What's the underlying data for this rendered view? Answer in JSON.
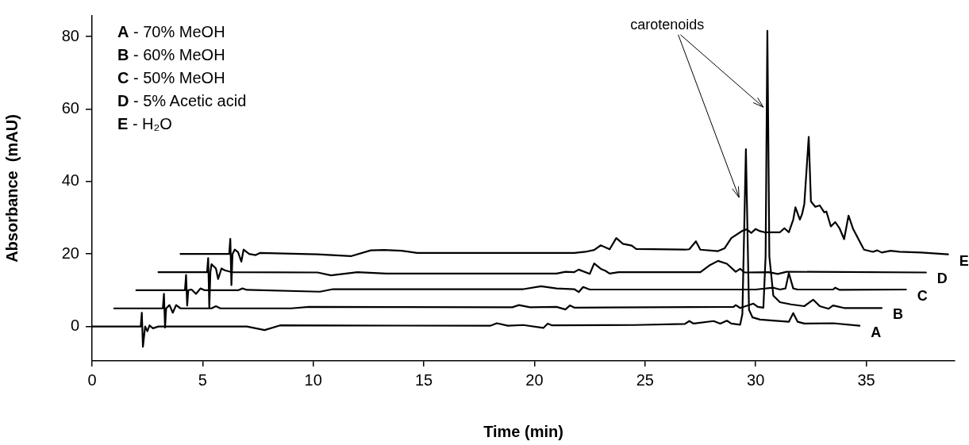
{
  "chart_data": {
    "type": "line",
    "xlabel": "Time (min)",
    "ylabel": "Absorbance  (mAU)",
    "xlim": [
      0,
      39
    ],
    "xticks": [
      0,
      5,
      10,
      15,
      20,
      25,
      30,
      35
    ],
    "ylim": [
      -9.5,
      85.7
    ],
    "yticks": [
      0,
      20,
      40,
      60,
      80
    ],
    "grid": false,
    "legend": false,
    "marker": "none",
    "line_style": "solid",
    "annotations": [
      "A - 70% MeOH",
      "B - 60% MeOH",
      "C - 50% MeOH",
      "D - 5% Acetic acid",
      "E - H₂O",
      {
        "text": "carotenoids",
        "x": 30.35,
        "y": 60.5
      }
    ],
    "series": [
      {
        "name": "A",
        "color": "#000000",
        "x": [
          0,
          2.2,
          2.25,
          2.3,
          2.4,
          2.5,
          2.6,
          2.75,
          3.0,
          7.0,
          7.8,
          8.5,
          18.0,
          18.3,
          18.8,
          19.5,
          20.4,
          20.6,
          20.8,
          24.5,
          26.8,
          27.0,
          27.2,
          28.1,
          28.4,
          28.7,
          28.9,
          29.3,
          29.4,
          29.56,
          29.7,
          29.86,
          30.2,
          30.9,
          31.5,
          31.7,
          31.9,
          32.2,
          33.5,
          34.7
        ],
        "values": [
          0,
          0,
          3.8,
          -5.6,
          0,
          -1.3,
          0.3,
          -0.5,
          0,
          0,
          -1,
          0.3,
          0.2,
          0.9,
          0.2,
          0.4,
          -0.4,
          0.8,
          0.3,
          0.4,
          0.7,
          1.5,
          0.8,
          1.5,
          0.8,
          1.6,
          0.8,
          0.5,
          3.4,
          48.9,
          4.6,
          2.5,
          1.9,
          1.6,
          1.3,
          3.7,
          1.3,
          0.8,
          0.9,
          0.2
        ]
      },
      {
        "name": "B",
        "color": "#000000",
        "x": [
          1.0,
          3.2,
          3.25,
          3.3,
          3.35,
          3.5,
          3.65,
          3.8,
          4.0,
          5.4,
          5.6,
          5.8,
          9.0,
          9.8,
          19.0,
          19.3,
          19.8,
          21.0,
          21.4,
          21.6,
          21.8,
          29.0,
          29.1,
          29.3,
          29.9,
          30.1,
          30.35,
          30.45,
          30.53,
          30.62,
          30.8,
          31.1,
          31.6,
          32.2,
          32.6,
          32.9,
          33.3,
          33.5,
          34.0,
          35.7
        ],
        "values": [
          5,
          5,
          9.0,
          -0.3,
          5,
          5.9,
          3.8,
          5.9,
          5,
          5,
          5.6,
          5,
          5,
          5.4,
          5.3,
          5.9,
          5.3,
          5.4,
          4.7,
          5.8,
          5.2,
          5.4,
          5.9,
          5.1,
          6.3,
          5.4,
          5.2,
          19.3,
          81.6,
          19.3,
          8.5,
          6.7,
          6.1,
          5.6,
          7.4,
          5.6,
          4.9,
          5.8,
          5.1,
          5.1
        ]
      },
      {
        "name": "C",
        "color": "#000000",
        "x": [
          2.0,
          4.2,
          4.25,
          4.3,
          4.35,
          4.5,
          4.7,
          4.9,
          5.1,
          6.6,
          6.8,
          7.0,
          10.3,
          10.9,
          19.5,
          20.3,
          21.0,
          21.8,
          22.0,
          22.2,
          22.5,
          30.0,
          30.8,
          31.1,
          31.35,
          31.5,
          31.7,
          31.9,
          33.5,
          33.6,
          33.8,
          36.8
        ],
        "values": [
          10,
          10,
          14.2,
          5.8,
          10,
          10.2,
          9.0,
          10.5,
          10,
          10,
          10.5,
          10.1,
          9.6,
          10.3,
          10.3,
          11.1,
          10.5,
          10.3,
          9.5,
          10.9,
          10.2,
          10.2,
          10.7,
          10.2,
          10.5,
          14.7,
          10.5,
          10.2,
          10.2,
          10.7,
          10.1,
          10.2
        ]
      },
      {
        "name": "D",
        "color": "#000000",
        "x": [
          3.0,
          5.2,
          5.25,
          5.3,
          5.35,
          5.4,
          5.6,
          5.7,
          5.85,
          6.0,
          6.3,
          10.2,
          10.8,
          12.0,
          13.3,
          21.0,
          21.4,
          21.8,
          22.0,
          22.5,
          22.7,
          23.0,
          23.2,
          23.4,
          23.8,
          27.5,
          27.9,
          28.3,
          28.7,
          29.1,
          29.3,
          29.5,
          30.6,
          31.0,
          31.4,
          37.7
        ],
        "values": [
          15,
          15,
          18.9,
          5.3,
          15,
          17.2,
          16,
          13.1,
          16,
          15.5,
          15,
          14.9,
          14.1,
          15.0,
          14.6,
          14.6,
          15.1,
          15.0,
          15.7,
          14.5,
          17.4,
          15.9,
          15.4,
          14.6,
          15.0,
          15.0,
          16.8,
          18.1,
          17.3,
          15.1,
          15.9,
          14.9,
          15.0,
          14.5,
          15.1,
          14.9
        ]
      },
      {
        "name": "E",
        "color": "#000000",
        "x": [
          4.0,
          6.2,
          6.25,
          6.3,
          6.35,
          6.45,
          6.6,
          6.75,
          6.85,
          7.1,
          7.4,
          7.6,
          10.2,
          11.7,
          12.6,
          13.2,
          14.0,
          14.7,
          21.8,
          22.3,
          22.7,
          23.0,
          23.4,
          23.7,
          24.0,
          24.4,
          24.6,
          26.8,
          27.0,
          27.3,
          27.5,
          28.3,
          28.6,
          28.9,
          29.4,
          29.6,
          29.8,
          30.0,
          30.2,
          30.4,
          31.1,
          31.3,
          31.5,
          31.7,
          31.8,
          32.0,
          32.1,
          32.2,
          32.4,
          32.5,
          32.7,
          32.9,
          33.1,
          33.2,
          33.4,
          33.6,
          33.8,
          34.0,
          34.2,
          34.4,
          34.7,
          34.9,
          35.3,
          35.5,
          35.7,
          36.1,
          36.5,
          37.5,
          38.7
        ],
        "values": [
          20,
          20,
          24.2,
          11.4,
          20,
          21.2,
          20.5,
          17.9,
          21.2,
          20.0,
          19.7,
          20.3,
          19.9,
          19.4,
          21.0,
          21.1,
          20.9,
          20.3,
          20.3,
          20.6,
          21.1,
          22.4,
          21.3,
          24.4,
          22.8,
          22.3,
          21.4,
          21.2,
          21.3,
          23.5,
          21.2,
          20.8,
          21.6,
          24.4,
          26.4,
          26.8,
          25.8,
          26.9,
          26.3,
          26.0,
          26.0,
          27.1,
          26.0,
          29.5,
          32.9,
          29.5,
          31.0,
          33.8,
          52.3,
          34.5,
          33.0,
          33.4,
          31.5,
          31.7,
          27.6,
          28.8,
          27.0,
          24.1,
          30.6,
          27.0,
          23.5,
          21.2,
          20.6,
          21.0,
          20.4,
          20.9,
          20.6,
          20.4,
          19.9
        ]
      }
    ]
  }
}
